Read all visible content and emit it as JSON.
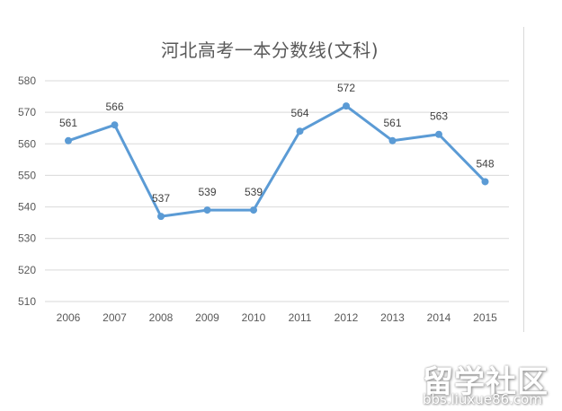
{
  "chart_data": {
    "type": "line",
    "title": "河北高考一本分数线(文科)",
    "xlabel": "",
    "ylabel": "",
    "categories": [
      "2006",
      "2007",
      "2008",
      "2009",
      "2010",
      "2011",
      "2012",
      "2013",
      "2014",
      "2015"
    ],
    "series": [
      {
        "name": "文科",
        "values": [
          561,
          566,
          537,
          539,
          539,
          564,
          572,
          561,
          563,
          548
        ],
        "color": "#5b9bd5"
      }
    ],
    "ylim": [
      510,
      580
    ],
    "yticks": [
      580,
      570,
      560,
      550,
      540,
      530,
      520,
      510
    ],
    "grid": true,
    "legend": "none",
    "data_labels": true
  },
  "watermark": {
    "brand": "留学社区",
    "url": "bbs.liuxue86.com"
  },
  "colors": {
    "line": "#5b9bd5",
    "grid": "#d9d9d9",
    "axis_text": "#595959"
  }
}
